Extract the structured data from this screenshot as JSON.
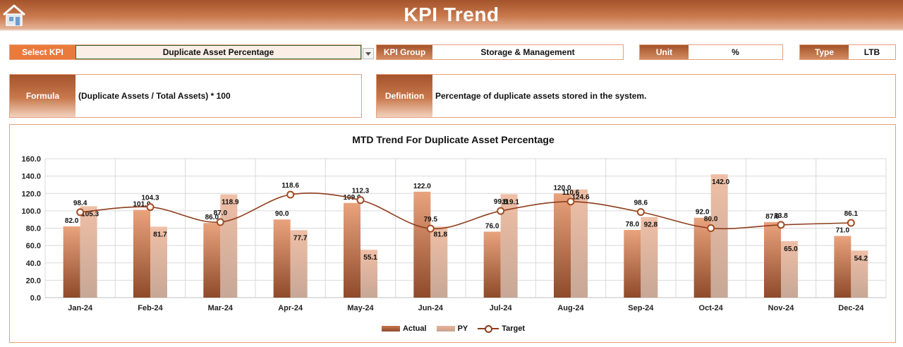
{
  "header": {
    "title": "KPI Trend",
    "home_icon": "home-icon"
  },
  "fields": {
    "select_kpi_label": "Select KPI",
    "select_kpi_value": "Duplicate Asset Percentage",
    "kpi_group_label": "KPI Group",
    "kpi_group_value": "Storage & Management",
    "unit_label": "Unit",
    "unit_value": "%",
    "type_label": "Type",
    "type_value": "LTB",
    "formula_label": "Formula",
    "formula_value": "(Duplicate Assets / Total Assets) * 100",
    "definition_label": "Definition",
    "definition_value": "Percentage of duplicate assets stored in the system."
  },
  "colors": {
    "accent": "#c9794c",
    "actual": "#c9794c",
    "py": "#e7b59b",
    "target": "#8e3d1b"
  },
  "chart_data": {
    "type": "bar",
    "title": "MTD Trend For Duplicate Asset Percentage",
    "xlabel": "",
    "ylabel": "",
    "ylim": [
      0,
      160
    ],
    "yticks": [
      "0.0",
      "20.0",
      "40.0",
      "60.0",
      "80.0",
      "100.0",
      "120.0",
      "140.0",
      "160.0"
    ],
    "categories": [
      "Jan-24",
      "Feb-24",
      "Mar-24",
      "Apr-24",
      "May-24",
      "Jun-24",
      "Jul-24",
      "Aug-24",
      "Sep-24",
      "Oct-24",
      "Nov-24",
      "Dec-24"
    ],
    "grid": true,
    "legend_position": "bottom",
    "series": [
      {
        "name": "Actual",
        "kind": "bar",
        "values": [
          82.0,
          101.0,
          86.0,
          90.0,
          109.0,
          122.0,
          76.0,
          120.0,
          78.0,
          92.0,
          87.0,
          71.0
        ]
      },
      {
        "name": "PY",
        "kind": "bar",
        "values": [
          105.3,
          81.7,
          118.9,
          77.7,
          55.1,
          81.8,
          119.1,
          124.6,
          92.8,
          142.0,
          65.0,
          54.2
        ]
      },
      {
        "name": "Target",
        "kind": "line",
        "values": [
          98.4,
          104.3,
          87.0,
          118.6,
          112.3,
          79.5,
          99.8,
          110.6,
          98.6,
          80.0,
          83.8,
          86.1
        ]
      }
    ]
  }
}
